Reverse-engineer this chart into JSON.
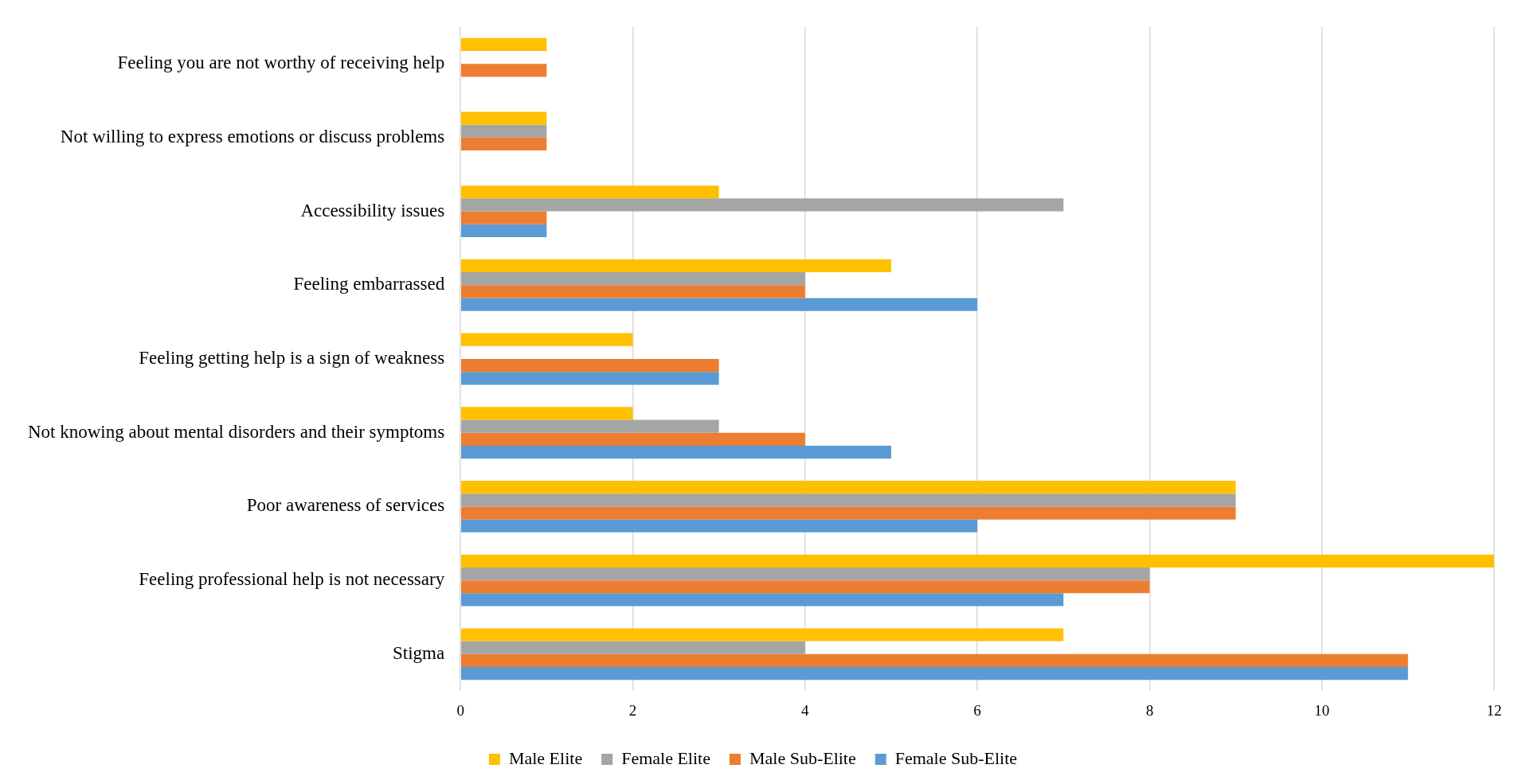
{
  "chart_data": {
    "type": "bar",
    "orientation": "horizontal",
    "categories": [
      "Feeling you are not worthy of receiving help",
      "Not willing to express emotions or discuss problems",
      "Accessibility issues",
      "Feeling embarrassed",
      "Feeling getting help is a sign of weakness",
      "Not knowing about mental disorders and their symptoms",
      "Poor awareness of services",
      "Feeling professional help is not necessary",
      "Stigma"
    ],
    "series": [
      {
        "name": "Male Elite",
        "color": "#ffc000",
        "values": [
          1,
          1,
          3,
          5,
          2,
          2,
          9,
          12,
          7
        ]
      },
      {
        "name": "Female Elite",
        "color": "#a5a5a5",
        "values": [
          0,
          1,
          7,
          4,
          0,
          3,
          9,
          8,
          4
        ]
      },
      {
        "name": "Male Sub-Elite",
        "color": "#ed7d31",
        "values": [
          1,
          1,
          1,
          4,
          3,
          4,
          9,
          8,
          11
        ]
      },
      {
        "name": "Female Sub-Elite",
        "color": "#5b9bd5",
        "values": [
          0,
          0,
          1,
          6,
          3,
          5,
          6,
          7,
          11
        ]
      }
    ],
    "xlim": [
      0,
      12
    ],
    "xticks": [
      0,
      2,
      4,
      6,
      8,
      10,
      12
    ],
    "grid": "x",
    "legend": "bottom"
  }
}
